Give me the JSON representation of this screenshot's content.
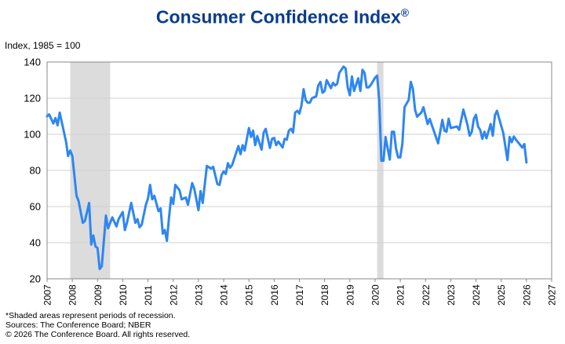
{
  "title": "Consumer Confidence Index",
  "title_mark": "®",
  "footnotes": [
    "*Shaded areas represent periods of recession.",
    "Sources: The Conference Board;  NBER",
    "© 2026 The Conference Board. All rights reserved."
  ],
  "chart_data": {
    "type": "line",
    "title": "Consumer Confidence Index®",
    "ylabel": "Index, 1985 = 100",
    "xlabel": "",
    "xlim": [
      2007,
      2027
    ],
    "ylim": [
      20,
      140
    ],
    "yticks": [
      20,
      40,
      60,
      80,
      100,
      120,
      140
    ],
    "xticks": [
      "2007",
      "2008",
      "2009",
      "2010",
      "2011",
      "2012",
      "2013",
      "2014",
      "2015",
      "2016",
      "2017",
      "2018",
      "2019",
      "2020",
      "2021",
      "2022",
      "2023",
      "2024",
      "2025",
      "2026",
      "2027"
    ],
    "grid": "horizontal",
    "line_color": "#2E86F2",
    "recession_color": "#DCDCDC",
    "recessions": [
      {
        "start": "2007-12",
        "end": "2009-06"
      },
      {
        "start": "2020-02",
        "end": "2020-04"
      }
    ],
    "points": [
      [
        "2007-01",
        110
      ],
      [
        "2007-02",
        111
      ],
      [
        "2007-04",
        106
      ],
      [
        "2007-05",
        109
      ],
      [
        "2007-06",
        105
      ],
      [
        "2007-07",
        112
      ],
      [
        "2007-10",
        96
      ],
      [
        "2007-11",
        88
      ],
      [
        "2007-12",
        91
      ],
      [
        "2008-01",
        88
      ],
      [
        "2008-03",
        66
      ],
      [
        "2008-04",
        63
      ],
      [
        "2008-06",
        51
      ],
      [
        "2008-07",
        52
      ],
      [
        "2008-09",
        62
      ],
      [
        "2008-10",
        39
      ],
      [
        "2008-11",
        44
      ],
      [
        "2008-12",
        38
      ],
      [
        "2009-01",
        37
      ],
      [
        "2009-02",
        25.5
      ],
      [
        "2009-03",
        27
      ],
      [
        "2009-05",
        55
      ],
      [
        "2009-06",
        48
      ],
      [
        "2009-08",
        54
      ],
      [
        "2009-10",
        49
      ],
      [
        "2009-11",
        53
      ],
      [
        "2010-01",
        57
      ],
      [
        "2010-02",
        47
      ],
      [
        "2010-03",
        51
      ],
      [
        "2010-05",
        62
      ],
      [
        "2010-07",
        51
      ],
      [
        "2010-08",
        53
      ],
      [
        "2010-09",
        48.5
      ],
      [
        "2010-10",
        50
      ],
      [
        "2010-12",
        61
      ],
      [
        "2011-01",
        64.5
      ],
      [
        "2011-02",
        72
      ],
      [
        "2011-03",
        64
      ],
      [
        "2011-04",
        66
      ],
      [
        "2011-06",
        57.5
      ],
      [
        "2011-07",
        59
      ],
      [
        "2011-08",
        45
      ],
      [
        "2011-09",
        47
      ],
      [
        "2011-10",
        41
      ],
      [
        "2011-11",
        54
      ],
      [
        "2011-12",
        65
      ],
      [
        "2012-01",
        61.5
      ],
      [
        "2012-02",
        72
      ],
      [
        "2012-04",
        69
      ],
      [
        "2012-05",
        64
      ],
      [
        "2012-07",
        65
      ],
      [
        "2012-08",
        61
      ],
      [
        "2012-10",
        73
      ],
      [
        "2012-11",
        70
      ],
      [
        "2013-01",
        58
      ],
      [
        "2013-02",
        68.5
      ],
      [
        "2013-03",
        62
      ],
      [
        "2013-05",
        82.5
      ],
      [
        "2013-07",
        81
      ],
      [
        "2013-08",
        82
      ],
      [
        "2013-10",
        72.5
      ],
      [
        "2013-11",
        72
      ],
      [
        "2013-12",
        77.5
      ],
      [
        "2014-01",
        79.5
      ],
      [
        "2014-02",
        78
      ],
      [
        "2014-03",
        84
      ],
      [
        "2014-04",
        81.5
      ],
      [
        "2014-05",
        83
      ],
      [
        "2014-08",
        93.5
      ],
      [
        "2014-09",
        89
      ],
      [
        "2014-10",
        94
      ],
      [
        "2014-11",
        91
      ],
      [
        "2015-01",
        103.5
      ],
      [
        "2015-02",
        98.5
      ],
      [
        "2015-03",
        102
      ],
      [
        "2015-04",
        94
      ],
      [
        "2015-05",
        99
      ],
      [
        "2015-07",
        91.5
      ],
      [
        "2015-08",
        101
      ],
      [
        "2015-09",
        103
      ],
      [
        "2015-11",
        92.5
      ],
      [
        "2015-12",
        97.5
      ],
      [
        "2016-01",
        98
      ],
      [
        "2016-02",
        94
      ],
      [
        "2016-03",
        96
      ],
      [
        "2016-05",
        92.7
      ],
      [
        "2016-06",
        97.5
      ],
      [
        "2016-07",
        97
      ],
      [
        "2016-08",
        102
      ],
      [
        "2016-09",
        103
      ],
      [
        "2016-10",
        101
      ],
      [
        "2016-11",
        112
      ],
      [
        "2016-12",
        113
      ],
      [
        "2017-01",
        111.5
      ],
      [
        "2017-02",
        116
      ],
      [
        "2017-03",
        125
      ],
      [
        "2017-04",
        119
      ],
      [
        "2017-05",
        117.5
      ],
      [
        "2017-06",
        117.5
      ],
      [
        "2017-07",
        120
      ],
      [
        "2017-09",
        121
      ],
      [
        "2017-10",
        127
      ],
      [
        "2017-11",
        129
      ],
      [
        "2017-12",
        123
      ],
      [
        "2018-01",
        124
      ],
      [
        "2018-02",
        130
      ],
      [
        "2018-04",
        125.5
      ],
      [
        "2018-05",
        128.5
      ],
      [
        "2018-06",
        127
      ],
      [
        "2018-07",
        128
      ],
      [
        "2018-08",
        134
      ],
      [
        "2018-10",
        137.5
      ],
      [
        "2018-11",
        136.5
      ],
      [
        "2018-12",
        126
      ],
      [
        "2019-01",
        121.6
      ],
      [
        "2019-02",
        132
      ],
      [
        "2019-03",
        124
      ],
      [
        "2019-05",
        131
      ],
      [
        "2019-06",
        124
      ],
      [
        "2019-07",
        135.7
      ],
      [
        "2019-08",
        134
      ],
      [
        "2019-09",
        126
      ],
      [
        "2019-10",
        126
      ],
      [
        "2019-11",
        127.4
      ],
      [
        "2020-01",
        131.3
      ],
      [
        "2020-02",
        132.5
      ],
      [
        "2020-03",
        118.7
      ],
      [
        "2020-04",
        85.4
      ],
      [
        "2020-05",
        85.4
      ],
      [
        "2020-06",
        98.5
      ],
      [
        "2020-08",
        86
      ],
      [
        "2020-09",
        101.4
      ],
      [
        "2020-10",
        101.4
      ],
      [
        "2020-11",
        92
      ],
      [
        "2020-12",
        87.2
      ],
      [
        "2021-01",
        87.2
      ],
      [
        "2021-02",
        95
      ],
      [
        "2021-03",
        115
      ],
      [
        "2021-05",
        119
      ],
      [
        "2021-06",
        129
      ],
      [
        "2021-07",
        125
      ],
      [
        "2021-08",
        113.7
      ],
      [
        "2021-09",
        109.8
      ],
      [
        "2021-11",
        112
      ],
      [
        "2021-12",
        115
      ],
      [
        "2022-02",
        105.7
      ],
      [
        "2022-03",
        108.5
      ],
      [
        "2022-07",
        95
      ],
      [
        "2022-09",
        108
      ],
      [
        "2022-10",
        102
      ],
      [
        "2022-11",
        101.4
      ],
      [
        "2022-12",
        108.6
      ],
      [
        "2023-01",
        103.5
      ],
      [
        "2023-04",
        104.3
      ],
      [
        "2023-05",
        102.5
      ],
      [
        "2023-07",
        113.7
      ],
      [
        "2023-09",
        105
      ],
      [
        "2023-10",
        99.2
      ],
      [
        "2023-11",
        101.4
      ],
      [
        "2023-12",
        108.6
      ],
      [
        "2024-01",
        110.8
      ],
      [
        "2024-02",
        104.3
      ],
      [
        "2024-03",
        102.5
      ],
      [
        "2024-04",
        97.5
      ],
      [
        "2024-05",
        101.4
      ],
      [
        "2024-06",
        97.8
      ],
      [
        "2024-08",
        105.7
      ],
      [
        "2024-09",
        99.2
      ],
      [
        "2024-10",
        110.5
      ],
      [
        "2024-11",
        113
      ],
      [
        "2025-02",
        100.6
      ],
      [
        "2025-04",
        85.7
      ],
      [
        "2025-05",
        98.5
      ],
      [
        "2025-06",
        95.6
      ],
      [
        "2025-07",
        98.8
      ],
      [
        "2025-08",
        97
      ],
      [
        "2025-09",
        95.6
      ],
      [
        "2025-11",
        92.7
      ],
      [
        "2025-12",
        94.6
      ],
      [
        "2026-01",
        84.4
      ]
    ]
  }
}
